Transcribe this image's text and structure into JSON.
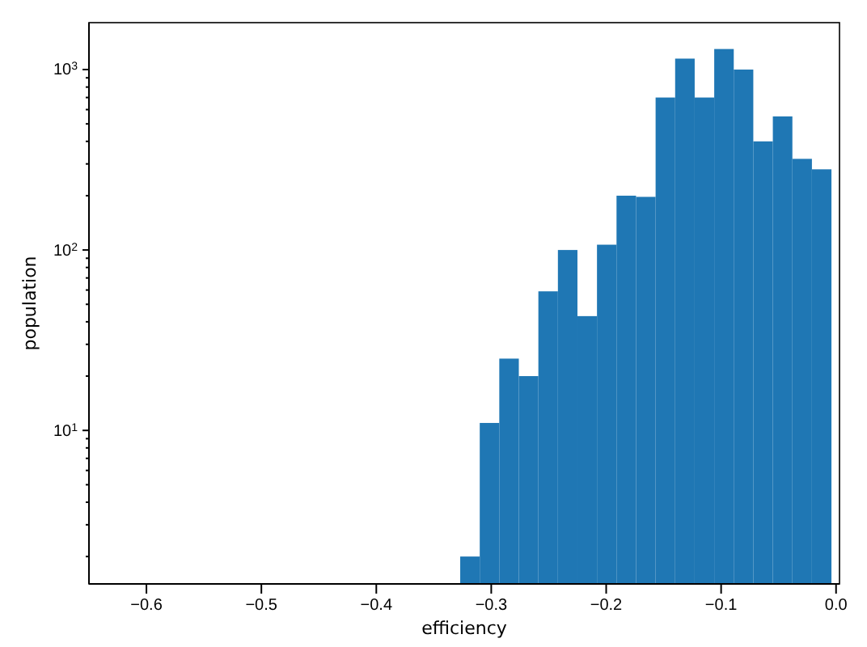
{
  "chart_data": {
    "type": "histogram",
    "xlabel": "efficiency",
    "ylabel": "population",
    "log": true,
    "color": "#1f77b4",
    "bins": [
      -0.327,
      -0.31,
      -0.293,
      -0.276,
      -0.259,
      -0.242,
      -0.225,
      -0.208,
      -0.191,
      -0.174,
      -0.157,
      -0.14,
      -0.123,
      -0.106,
      -0.089,
      -0.072,
      -0.055,
      -0.038,
      -0.021,
      -0.004
    ],
    "values": [
      2,
      11,
      25,
      20,
      59,
      100,
      43,
      107,
      200,
      197,
      700,
      1150,
      700,
      1300,
      1000,
      400,
      550,
      320,
      280
    ],
    "xlim": [
      -0.65,
      0.003
    ],
    "xticks": [
      {
        "value": -0.6,
        "label": "−0.6"
      },
      {
        "value": -0.5,
        "label": "−0.5"
      },
      {
        "value": -0.4,
        "label": "−0.4"
      },
      {
        "value": -0.3,
        "label": "−0.3"
      },
      {
        "value": -0.2,
        "label": "−0.2"
      },
      {
        "value": -0.1,
        "label": "−0.1"
      },
      {
        "value": 0,
        "label": "0.0"
      }
    ],
    "ylim": [
      1.41,
      1820
    ],
    "yticks": [
      {
        "value": 2,
        "label": null
      },
      {
        "value": 3,
        "label": null
      },
      {
        "value": 4,
        "label": null
      },
      {
        "value": 5,
        "label": null
      },
      {
        "value": 6,
        "label": null
      },
      {
        "value": 7,
        "label": null
      },
      {
        "value": 8,
        "label": null
      },
      {
        "value": 9,
        "label": null
      },
      {
        "value": 10,
        "label": "10$^{1}$"
      },
      {
        "value": 20,
        "label": null
      },
      {
        "value": 30,
        "label": null
      },
      {
        "value": 40,
        "label": null
      },
      {
        "value": 50,
        "label": null
      },
      {
        "value": 60,
        "label": null
      },
      {
        "value": 70,
        "label": null
      },
      {
        "value": 80,
        "label": null
      },
      {
        "value": 90,
        "label": null
      },
      {
        "value": 100,
        "label": "10$^{2}$"
      },
      {
        "value": 200,
        "label": null
      },
      {
        "value": 300,
        "label": null
      },
      {
        "value": 400,
        "label": null
      },
      {
        "value": 500,
        "label": null
      },
      {
        "value": 600,
        "label": null
      },
      {
        "value": 700,
        "label": null
      },
      {
        "value": 800,
        "label": null
      },
      {
        "value": 900,
        "label": null
      },
      {
        "value": 1000,
        "label": "10$^{3}$"
      }
    ]
  }
}
